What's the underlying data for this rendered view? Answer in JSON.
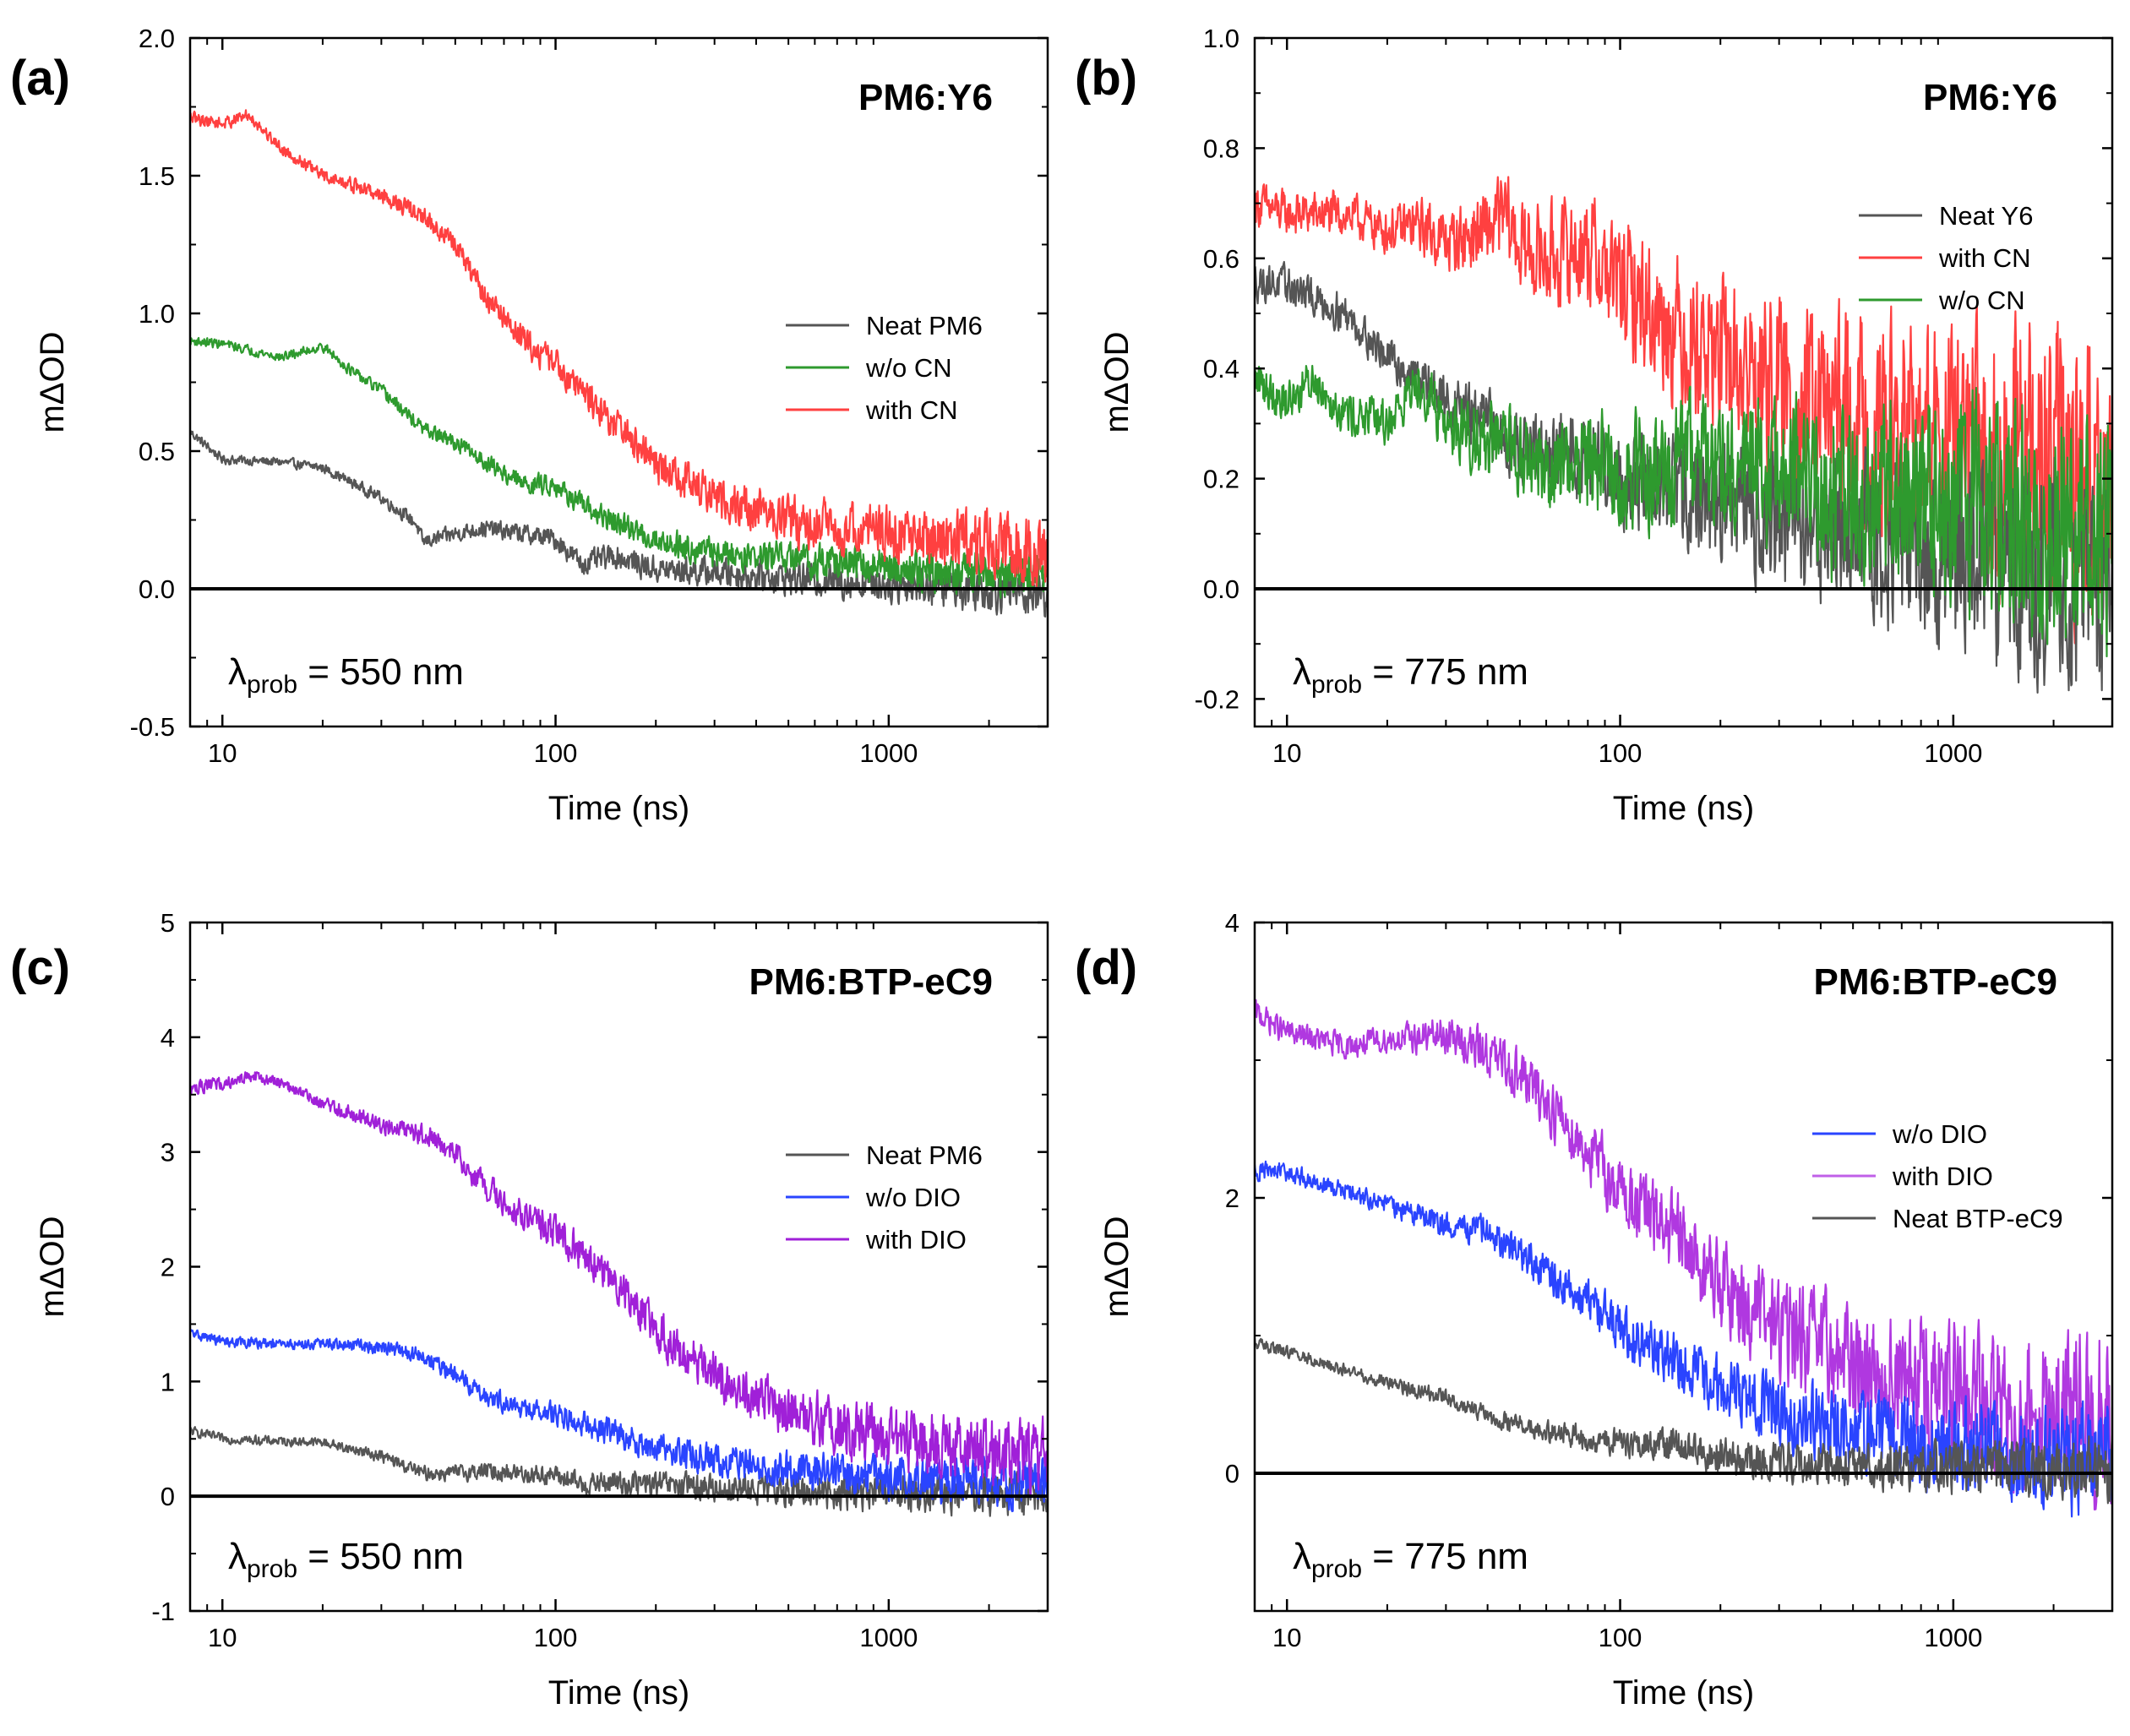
{
  "figure": {
    "panels": [
      {
        "panel_label": "(a)",
        "material": "PM6:Y6",
        "probe": {
          "lambda": "λ",
          "sub": "prob",
          "rest": " = 550 nm"
        },
        "xlabel": "Time (ns)",
        "ylabel": "mΔOD",
        "xlim": [
          8,
          3000
        ],
        "ylim": [
          -0.5,
          2.0
        ],
        "yticks": [
          "-0.5",
          "0.0",
          "0.5",
          "1.0",
          "1.5",
          "2.0"
        ],
        "ytick_values": [
          -0.5,
          0.0,
          0.5,
          1.0,
          1.5,
          2.0
        ],
        "xticks": [
          "10",
          "100",
          "1000"
        ],
        "xtick_values": [
          10,
          100,
          1000
        ],
        "legend": [
          "Neat PM6",
          "w/o CN",
          "with CN"
        ],
        "legend_colors": [
          "#555555",
          "#2e9a2e",
          "#ff4040"
        ]
      },
      {
        "panel_label": "(b)",
        "material": "PM6:Y6",
        "probe": {
          "lambda": "λ",
          "sub": "prob",
          "rest": " = 775 nm"
        },
        "xlabel": "Time (ns)",
        "ylabel": "mΔOD",
        "xlim": [
          8,
          3000
        ],
        "ylim": [
          -0.25,
          1.0
        ],
        "yticks": [
          "-0.2",
          "0.0",
          "0.2",
          "0.4",
          "0.6",
          "0.8",
          "1.0"
        ],
        "ytick_values": [
          -0.2,
          0.0,
          0.2,
          0.4,
          0.6,
          0.8,
          1.0
        ],
        "xticks": [
          "10",
          "100",
          "1000"
        ],
        "xtick_values": [
          10,
          100,
          1000
        ],
        "legend": [
          "Neat Y6",
          "with CN",
          "w/o CN"
        ],
        "legend_colors": [
          "#555555",
          "#ff4040",
          "#2e9a2e"
        ]
      },
      {
        "panel_label": "(c)",
        "material": "PM6:BTP-eC9",
        "probe": {
          "lambda": "λ",
          "sub": "prob",
          "rest": " = 550 nm"
        },
        "xlabel": "Time (ns)",
        "ylabel": "mΔOD",
        "xlim": [
          8,
          3000
        ],
        "ylim": [
          -1,
          5
        ],
        "yticks": [
          "-1",
          "0",
          "1",
          "2",
          "3",
          "4",
          "5"
        ],
        "ytick_values": [
          -1,
          0,
          1,
          2,
          3,
          4,
          5
        ],
        "xticks": [
          "10",
          "100",
          "1000"
        ],
        "xtick_values": [
          10,
          100,
          1000
        ],
        "legend": [
          "Neat PM6",
          "w/o DIO",
          "with DIO"
        ],
        "legend_colors": [
          "#555555",
          "#2a44ff",
          "#a020d8"
        ]
      },
      {
        "panel_label": "(d)",
        "material": "PM6:BTP-eC9",
        "probe": {
          "lambda": "λ",
          "sub": "prob",
          "rest": " = 775 nm"
        },
        "xlabel": "Time (ns)",
        "ylabel": "mΔOD",
        "xlim": [
          8,
          3000
        ],
        "ylim": [
          -1,
          4
        ],
        "yticks": [
          "0",
          "2",
          "4"
        ],
        "ytick_values": [
          0,
          2,
          4
        ],
        "xticks": [
          "10",
          "100",
          "1000"
        ],
        "xtick_values": [
          10,
          100,
          1000
        ],
        "legend": [
          "w/o DIO",
          "with DIO",
          "Neat BTP-eC9"
        ],
        "legend_colors": [
          "#2a44ff",
          "#c060e8",
          "#555555"
        ]
      }
    ]
  },
  "chart_data": [
    {
      "type": "line",
      "title": "PM6:Y6",
      "xlabel": "Time (ns)",
      "ylabel": "mΔOD",
      "xscale": "log",
      "xlim": [
        8,
        3000
      ],
      "ylim": [
        -0.5,
        2.0
      ],
      "annotation": "λprob = 550 nm",
      "series": [
        {
          "name": "Neat PM6",
          "color": "#555555",
          "noise": 0.015,
          "growth": 0.8,
          "t": [
            8,
            10,
            15,
            20,
            30,
            38,
            40,
            50,
            60,
            80,
            100,
            120,
            150,
            200,
            300,
            500,
            1000,
            2000,
            3000
          ],
          "y": [
            0.57,
            0.47,
            0.46,
            0.44,
            0.33,
            0.24,
            0.17,
            0.2,
            0.22,
            0.2,
            0.18,
            0.09,
            0.12,
            0.07,
            0.06,
            0.04,
            0.02,
            0.0,
            -0.02
          ]
        },
        {
          "name": "w/o CN",
          "color": "#2e9a2e",
          "noise": 0.015,
          "growth": 0.8,
          "t": [
            8,
            10,
            15,
            20,
            25,
            30,
            40,
            50,
            60,
            80,
            100,
            120,
            150,
            200,
            300,
            500,
            1000,
            2000,
            3000
          ],
          "y": [
            0.9,
            0.89,
            0.84,
            0.88,
            0.78,
            0.72,
            0.58,
            0.53,
            0.47,
            0.38,
            0.38,
            0.3,
            0.24,
            0.18,
            0.13,
            0.11,
            0.08,
            0.05,
            0.04
          ]
        },
        {
          "name": "with CN",
          "color": "#ff4040",
          "noise": 0.02,
          "growth": 0.9,
          "t": [
            8,
            10,
            12,
            15,
            20,
            30,
            40,
            50,
            60,
            80,
            100,
            150,
            200,
            300,
            500,
            1000,
            2000,
            3000
          ],
          "y": [
            1.71,
            1.69,
            1.72,
            1.6,
            1.5,
            1.43,
            1.35,
            1.25,
            1.08,
            0.9,
            0.82,
            0.6,
            0.45,
            0.33,
            0.25,
            0.2,
            0.16,
            0.13
          ]
        }
      ]
    },
    {
      "type": "line",
      "title": "PM6:Y6",
      "xlabel": "Time (ns)",
      "ylabel": "mΔOD",
      "xscale": "log",
      "xlim": [
        8,
        3000
      ],
      "ylim": [
        -0.25,
        1.0
      ],
      "annotation": "λprob = 775 nm",
      "series": [
        {
          "name": "with CN",
          "color": "#ff4040",
          "noise": 0.035,
          "growth": 1.2,
          "t": [
            8,
            10,
            15,
            20,
            25,
            30,
            40,
            45,
            50,
            60,
            80,
            100,
            150,
            200,
            300,
            500,
            1000,
            2000,
            3000
          ],
          "y": [
            0.7,
            0.68,
            0.68,
            0.65,
            0.66,
            0.63,
            0.65,
            0.68,
            0.62,
            0.6,
            0.62,
            0.55,
            0.47,
            0.42,
            0.35,
            0.3,
            0.25,
            0.21,
            0.19
          ]
        },
        {
          "name": "Neat Y6",
          "color": "#555555",
          "noise": 0.03,
          "growth": 1.0,
          "t": [
            8,
            10,
            15,
            20,
            25,
            30,
            40,
            50,
            60,
            80,
            100,
            200,
            300,
            500,
            1000,
            2000,
            3000
          ],
          "y": [
            0.56,
            0.55,
            0.5,
            0.42,
            0.38,
            0.34,
            0.3,
            0.26,
            0.24,
            0.25,
            0.2,
            0.16,
            0.13,
            0.1,
            0.06,
            0.03,
            0.02
          ]
        },
        {
          "name": "w/o CN",
          "color": "#2e9a2e",
          "noise": 0.035,
          "growth": 1.0,
          "t": [
            8,
            10,
            12,
            15,
            20,
            25,
            30,
            40,
            50,
            60,
            80,
            100,
            150,
            200,
            300,
            500,
            1000,
            2000,
            3000
          ],
          "y": [
            0.38,
            0.34,
            0.38,
            0.32,
            0.3,
            0.38,
            0.3,
            0.27,
            0.24,
            0.22,
            0.24,
            0.2,
            0.22,
            0.24,
            0.2,
            0.18,
            0.15,
            0.13,
            0.12
          ]
        }
      ]
    },
    {
      "type": "line",
      "title": "PM6:BTP-eC9",
      "xlabel": "Time (ns)",
      "ylabel": "mΔOD",
      "xscale": "log",
      "xlim": [
        8,
        3000
      ],
      "ylim": [
        -1,
        5
      ],
      "annotation": "λprob = 550 nm",
      "series": [
        {
          "name": "Neat PM6",
          "color": "#555555",
          "noise": 0.035,
          "growth": 0.8,
          "t": [
            8,
            10,
            15,
            20,
            30,
            40,
            50,
            60,
            80,
            100,
            120,
            150,
            200,
            300,
            500,
            1000,
            2000,
            3000
          ],
          "y": [
            0.57,
            0.5,
            0.48,
            0.47,
            0.35,
            0.2,
            0.2,
            0.22,
            0.2,
            0.18,
            0.1,
            0.12,
            0.1,
            0.07,
            0.05,
            0.03,
            0.02,
            0.01
          ]
        },
        {
          "name": "w/o DIO",
          "color": "#2a44ff",
          "noise": 0.04,
          "growth": 0.8,
          "t": [
            8,
            10,
            15,
            20,
            30,
            40,
            50,
            60,
            80,
            100,
            150,
            200,
            300,
            500,
            1000,
            2000,
            3000
          ],
          "y": [
            1.42,
            1.35,
            1.32,
            1.33,
            1.3,
            1.22,
            1.05,
            0.9,
            0.75,
            0.72,
            0.55,
            0.42,
            0.32,
            0.23,
            0.16,
            0.12,
            0.1
          ]
        },
        {
          "name": "with DIO",
          "color": "#a020d8",
          "noise": 0.05,
          "growth": 1.0,
          "t": [
            8,
            10,
            12,
            15,
            20,
            30,
            40,
            50,
            60,
            80,
            100,
            150,
            200,
            300,
            500,
            1000,
            2000,
            3000
          ],
          "y": [
            3.55,
            3.6,
            3.66,
            3.6,
            3.42,
            3.25,
            3.15,
            3.0,
            2.72,
            2.45,
            2.3,
            1.9,
            1.45,
            1.05,
            0.75,
            0.5,
            0.38,
            0.33
          ]
        }
      ]
    },
    {
      "type": "line",
      "title": "PM6:BTP-eC9",
      "xlabel": "Time (ns)",
      "ylabel": "mΔOD",
      "xscale": "log",
      "xlim": [
        8,
        3000
      ],
      "ylim": [
        -1,
        4
      ],
      "annotation": "λprob = 775 nm",
      "series": [
        {
          "name": "with DIO",
          "color": "#b038e0",
          "noise": 0.08,
          "growth": 1.2,
          "t": [
            8,
            10,
            15,
            20,
            30,
            40,
            50,
            60,
            80,
            100,
            150,
            200,
            300,
            500,
            1000,
            2000,
            3000
          ],
          "y": [
            3.35,
            3.2,
            3.1,
            3.15,
            3.18,
            3.05,
            2.9,
            2.7,
            2.35,
            2.05,
            1.7,
            1.35,
            1.05,
            0.8,
            0.55,
            0.42,
            0.35
          ]
        },
        {
          "name": "w/o DIO",
          "color": "#2a44ff",
          "noise": 0.06,
          "growth": 1.0,
          "t": [
            8,
            10,
            15,
            20,
            30,
            40,
            50,
            60,
            80,
            100,
            150,
            200,
            300,
            500,
            1000,
            2000,
            3000
          ],
          "y": [
            2.2,
            2.18,
            2.05,
            1.95,
            1.8,
            1.75,
            1.6,
            1.45,
            1.25,
            1.05,
            0.8,
            0.62,
            0.45,
            0.3,
            0.2,
            0.12,
            0.1
          ]
        },
        {
          "name": "Neat BTP-eC9",
          "color": "#555555",
          "noise": 0.04,
          "growth": 0.8,
          "t": [
            8,
            10,
            15,
            20,
            30,
            40,
            50,
            60,
            80,
            100,
            150,
            200,
            300,
            500,
            1000,
            2000,
            3000
          ],
          "y": [
            0.95,
            0.88,
            0.75,
            0.65,
            0.55,
            0.42,
            0.35,
            0.3,
            0.25,
            0.22,
            0.2,
            0.12,
            0.08,
            0.05,
            0.04,
            0.03,
            0.02
          ]
        }
      ]
    }
  ]
}
